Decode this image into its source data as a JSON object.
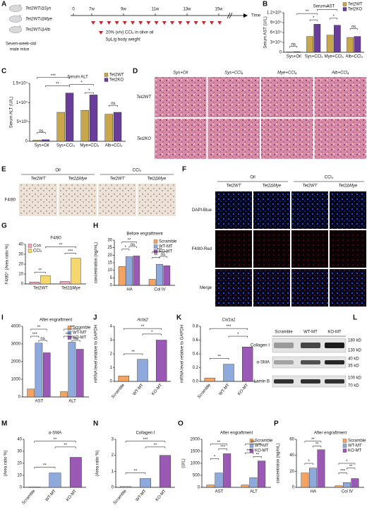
{
  "panels": [
    {
      "letter": "A",
      "mice": [
        "Tet2WT/ΔSys",
        "Tet2WT/ΔMye",
        "Tet2WT/ΔAlb"
      ],
      "caption": [
        "Seven-week-old",
        "male mice"
      ],
      "timeline": [
        "0",
        "7w",
        "9w",
        "11w",
        "13w",
        "15w"
      ],
      "axis_label": "Time",
      "legend": [
        "20% (v/v) CCl₄ in olive oil",
        "5μL/g body weight"
      ]
    },
    {
      "letter": "B",
      "type": "bar",
      "title": "Serum AST",
      "ylabel": "Serum AST (U/L)",
      "categories": [
        "Sys+Oil",
        "Sys+CCl₄",
        "Mye+CCl₄",
        "Alb+CCl₄"
      ],
      "series": [
        {
          "name": "Tet2WT",
          "color": "#c9a64a",
          "values": [
            1000,
            48000,
            52000,
            45000
          ]
        },
        {
          "name": "Tet2KO",
          "color": "#6a3d9a",
          "values": [
            2000,
            85000,
            82000,
            48000
          ]
        }
      ],
      "ylim": [
        0,
        120000
      ],
      "yticks": [
        0,
        {
          "value": 30000,
          "label": "3×10⁴"
        },
        {
          "value": 60000,
          "label": "6×10⁴"
        },
        {
          "value": 90000,
          "label": "9×10⁴"
        },
        {
          "value": 120000,
          "label": "1.2×10⁵"
        }
      ],
      "significance": [
        "ns",
        "**",
        "*",
        "**",
        "*",
        "ns"
      ]
    },
    {
      "letter": "C",
      "type": "bar",
      "title": "Serum ALT",
      "ylabel": "Serum ALT (U/L)",
      "categories": [
        "Sys+Oil",
        "Sys+CCl₄",
        "Mye+CCl₄",
        "Alb+CCl₄"
      ],
      "series": [
        {
          "name": "Tet2WT",
          "color": "#c9a64a",
          "values": [
            300,
            7500,
            8000,
            7000
          ]
        },
        {
          "name": "Tet2KO",
          "color": "#6a3d9a",
          "values": [
            400,
            12500,
            12000,
            7500
          ]
        }
      ],
      "ylim": [
        0,
        15000
      ],
      "yticks": [
        0,
        {
          "value": 5000,
          "label": "5×10³"
        },
        {
          "value": 10000,
          "label": "1×10⁴"
        },
        {
          "value": 15000,
          "label": "1.5×10⁴"
        }
      ],
      "significance": [
        "ns",
        "**",
        "***",
        "*",
        "*",
        "ns"
      ]
    },
    {
      "letter": "D",
      "columns": [
        "Sys+Oil",
        "Sys+CCl₄",
        "Mye+CCl₄",
        "Alb+CCl₄"
      ],
      "rows": [
        "Tet2WT",
        "Tet2KO"
      ]
    },
    {
      "letter": "E",
      "groups": [
        "Oil",
        "CCl₄"
      ],
      "columns": [
        "Tet2WT",
        "Tet2ΔMye",
        "Tet2WT",
        "Tet2ΔMye"
      ],
      "rows": [
        "F4/80"
      ]
    },
    {
      "letter": "F",
      "groups": [
        "Oil",
        "CCl₄"
      ],
      "columns": [
        "Tet2WT",
        "Tet2ΔMye",
        "Tet2WT",
        "Tet2ΔMye"
      ],
      "rows": [
        "DAPI-Blue",
        "F4/80-Red",
        "Merge"
      ]
    },
    {
      "letter": "G",
      "type": "bar",
      "title": "F4/80",
      "ylabel": "F4/80⁺ (Area ratio %)",
      "categories": [
        "Tet2WT",
        "Tet2ΔMye"
      ],
      "series": [
        {
          "name": "Con",
          "color": "#f4a6b8",
          "values": [
            2,
            2.5
          ]
        },
        {
          "name": "CCl₄",
          "color": "#f5d76e",
          "values": [
            8.5,
            26
          ]
        }
      ],
      "ylim": [
        0,
        40
      ],
      "yticks": [
        0,
        10,
        20,
        30,
        40
      ],
      "significance": [
        "**",
        "**",
        "***"
      ]
    },
    {
      "letter": "H",
      "type": "bar",
      "title": "Before engraftment",
      "ylabel": "concentration (ng/mL)",
      "categories": [
        "HA",
        "Col IV"
      ],
      "series": [
        {
          "name": "Scramble",
          "color": "#f4a460",
          "values": [
            12.5,
            4
          ]
        },
        {
          "name": "WT-MT",
          "color": "#8ea9db",
          "values": [
            19,
            14
          ]
        },
        {
          "name": "KO-MT",
          "color": "#9b59b6",
          "values": [
            19.5,
            13
          ]
        }
      ],
      "ylim": [
        0,
        30
      ],
      "yticks": [
        0,
        5,
        10,
        15,
        20,
        25,
        30
      ],
      "significance": [
        "*",
        "**",
        "ns",
        "**",
        "***",
        "ns"
      ]
    },
    {
      "letter": "I",
      "type": "bar",
      "title": "After engraftment",
      "categories": [
        "AST",
        "ALT"
      ],
      "series": [
        {
          "name": "Scramble",
          "color": "#f4a460",
          "values": [
            450,
            300
          ]
        },
        {
          "name": "WT-MT",
          "color": "#8ea9db",
          "values": [
            3050,
            3100
          ]
        },
        {
          "name": "KO-MT",
          "color": "#9b59b6",
          "values": [
            2500,
            2700
          ]
        }
      ],
      "ylim": [
        0,
        4000
      ],
      "yticks": [
        0,
        1000,
        2000,
        3000,
        4000
      ],
      "significance": [
        "***",
        "**",
        "ns",
        "**",
        "***",
        "ns"
      ]
    },
    {
      "letter": "J",
      "type": "bar",
      "title": "Acta2",
      "ylabel": "mRNA level relative to GAPDH",
      "categories": [
        "Scramble",
        "WT-MT",
        "KO-MT"
      ],
      "series": [
        {
          "colors": [
            "#f4a460",
            "#8ea9db",
            "#9b59b6"
          ],
          "values": [
            0.4,
            1.6,
            3.0
          ]
        }
      ],
      "ylim": [
        0,
        4
      ],
      "yticks": [
        0,
        1,
        2,
        3,
        4
      ],
      "significance": [
        "**",
        "**",
        "*"
      ]
    },
    {
      "letter": "K",
      "type": "bar",
      "title": "Col1a1",
      "ylabel": "mRNA level relative to GAPDH",
      "categories": [
        "Scramble",
        "WT-MT",
        "KO-MT"
      ],
      "series": [
        {
          "colors": [
            "#f4a460",
            "#8ea9db",
            "#9b59b6"
          ],
          "values": [
            0.05,
            0.25,
            0.5
          ]
        }
      ],
      "ylim": [
        0,
        0.8
      ],
      "yticks": [
        {
          "value": 0,
          "label": "0.0"
        },
        0.2,
        0.4,
        0.6,
        0.8
      ],
      "significance": [
        "**",
        "***",
        "*"
      ]
    },
    {
      "letter": "L",
      "lanes": [
        "Scramble",
        "WT-MT",
        "KO-MT"
      ],
      "rows": [
        "Collagen Ⅰ",
        "α-SMA",
        "Lamin B"
      ],
      "markers": [
        "180 kD",
        "130 kD",
        "40 kD",
        "35 kD",
        "100 kD",
        "70 kD"
      ]
    },
    {
      "letter": "M",
      "type": "bar",
      "title": "α-SMA",
      "ylabel": "(Area ratio %)",
      "categories": [
        "Scramble",
        "WT-MT",
        "KO-MT"
      ],
      "series": [
        {
          "colors": [
            "#f4a460",
            "#8ea9db",
            "#9b59b6"
          ],
          "values": [
            0.3,
            12,
            25
          ]
        }
      ],
      "ylim": [
        0,
        40
      ],
      "yticks": [
        0,
        10,
        20,
        30,
        40
      ],
      "significance": [
        "**",
        "**",
        "**"
      ]
    },
    {
      "letter": "N",
      "type": "bar",
      "title": "Collagen Ⅰ",
      "ylabel": "(Area ratio %)",
      "categories": [
        "Scramble",
        "WT-MT",
        "KO-MT"
      ],
      "series": [
        {
          "colors": [
            "#f4a460",
            "#8ea9db",
            "#9b59b6"
          ],
          "values": [
            0.05,
            0.55,
            2.0
          ]
        }
      ],
      "ylim": [
        0,
        3
      ],
      "yticks": [
        0,
        1,
        2,
        3
      ],
      "significance": [
        "**",
        "***",
        "**"
      ]
    },
    {
      "letter": "O",
      "type": "bar",
      "title": "After engraftment",
      "ylabel": "(U/L)",
      "categories": [
        "AST",
        "ALT"
      ],
      "series": [
        {
          "name": "Scramble",
          "color": "#f4a460",
          "values": [
            100,
            100
          ]
        },
        {
          "name": "WT-MT",
          "color": "#8ea9db",
          "values": [
            600,
            400
          ]
        },
        {
          "name": "KO-MT",
          "color": "#9b59b6",
          "values": [
            1400,
            1100
          ]
        }
      ],
      "ylim": [
        0,
        2000
      ],
      "yticks": [
        0,
        500,
        1000,
        1500,
        2000
      ],
      "significance": [
        "*",
        "**",
        "***",
        "***",
        "***",
        "**"
      ]
    },
    {
      "letter": "P",
      "type": "bar",
      "title": "After engraftment",
      "ylabel": "concentraion (ng/mL)",
      "categories": [
        "HA",
        "Col IV"
      ],
      "series": [
        {
          "name": "Scramble",
          "color": "#f4a460",
          "values": [
            18,
            2
          ]
        },
        {
          "name": "WT-MT",
          "color": "#8ea9db",
          "values": [
            24,
            6
          ]
        },
        {
          "name": "KO-MT",
          "color": "#9b59b6",
          "values": [
            47,
            11
          ]
        }
      ],
      "ylim": [
        0,
        60
      ],
      "yticks": [
        0,
        20,
        40,
        60
      ],
      "significance": [
        "*",
        "**",
        "**",
        "*",
        "***",
        "**"
      ]
    }
  ]
}
